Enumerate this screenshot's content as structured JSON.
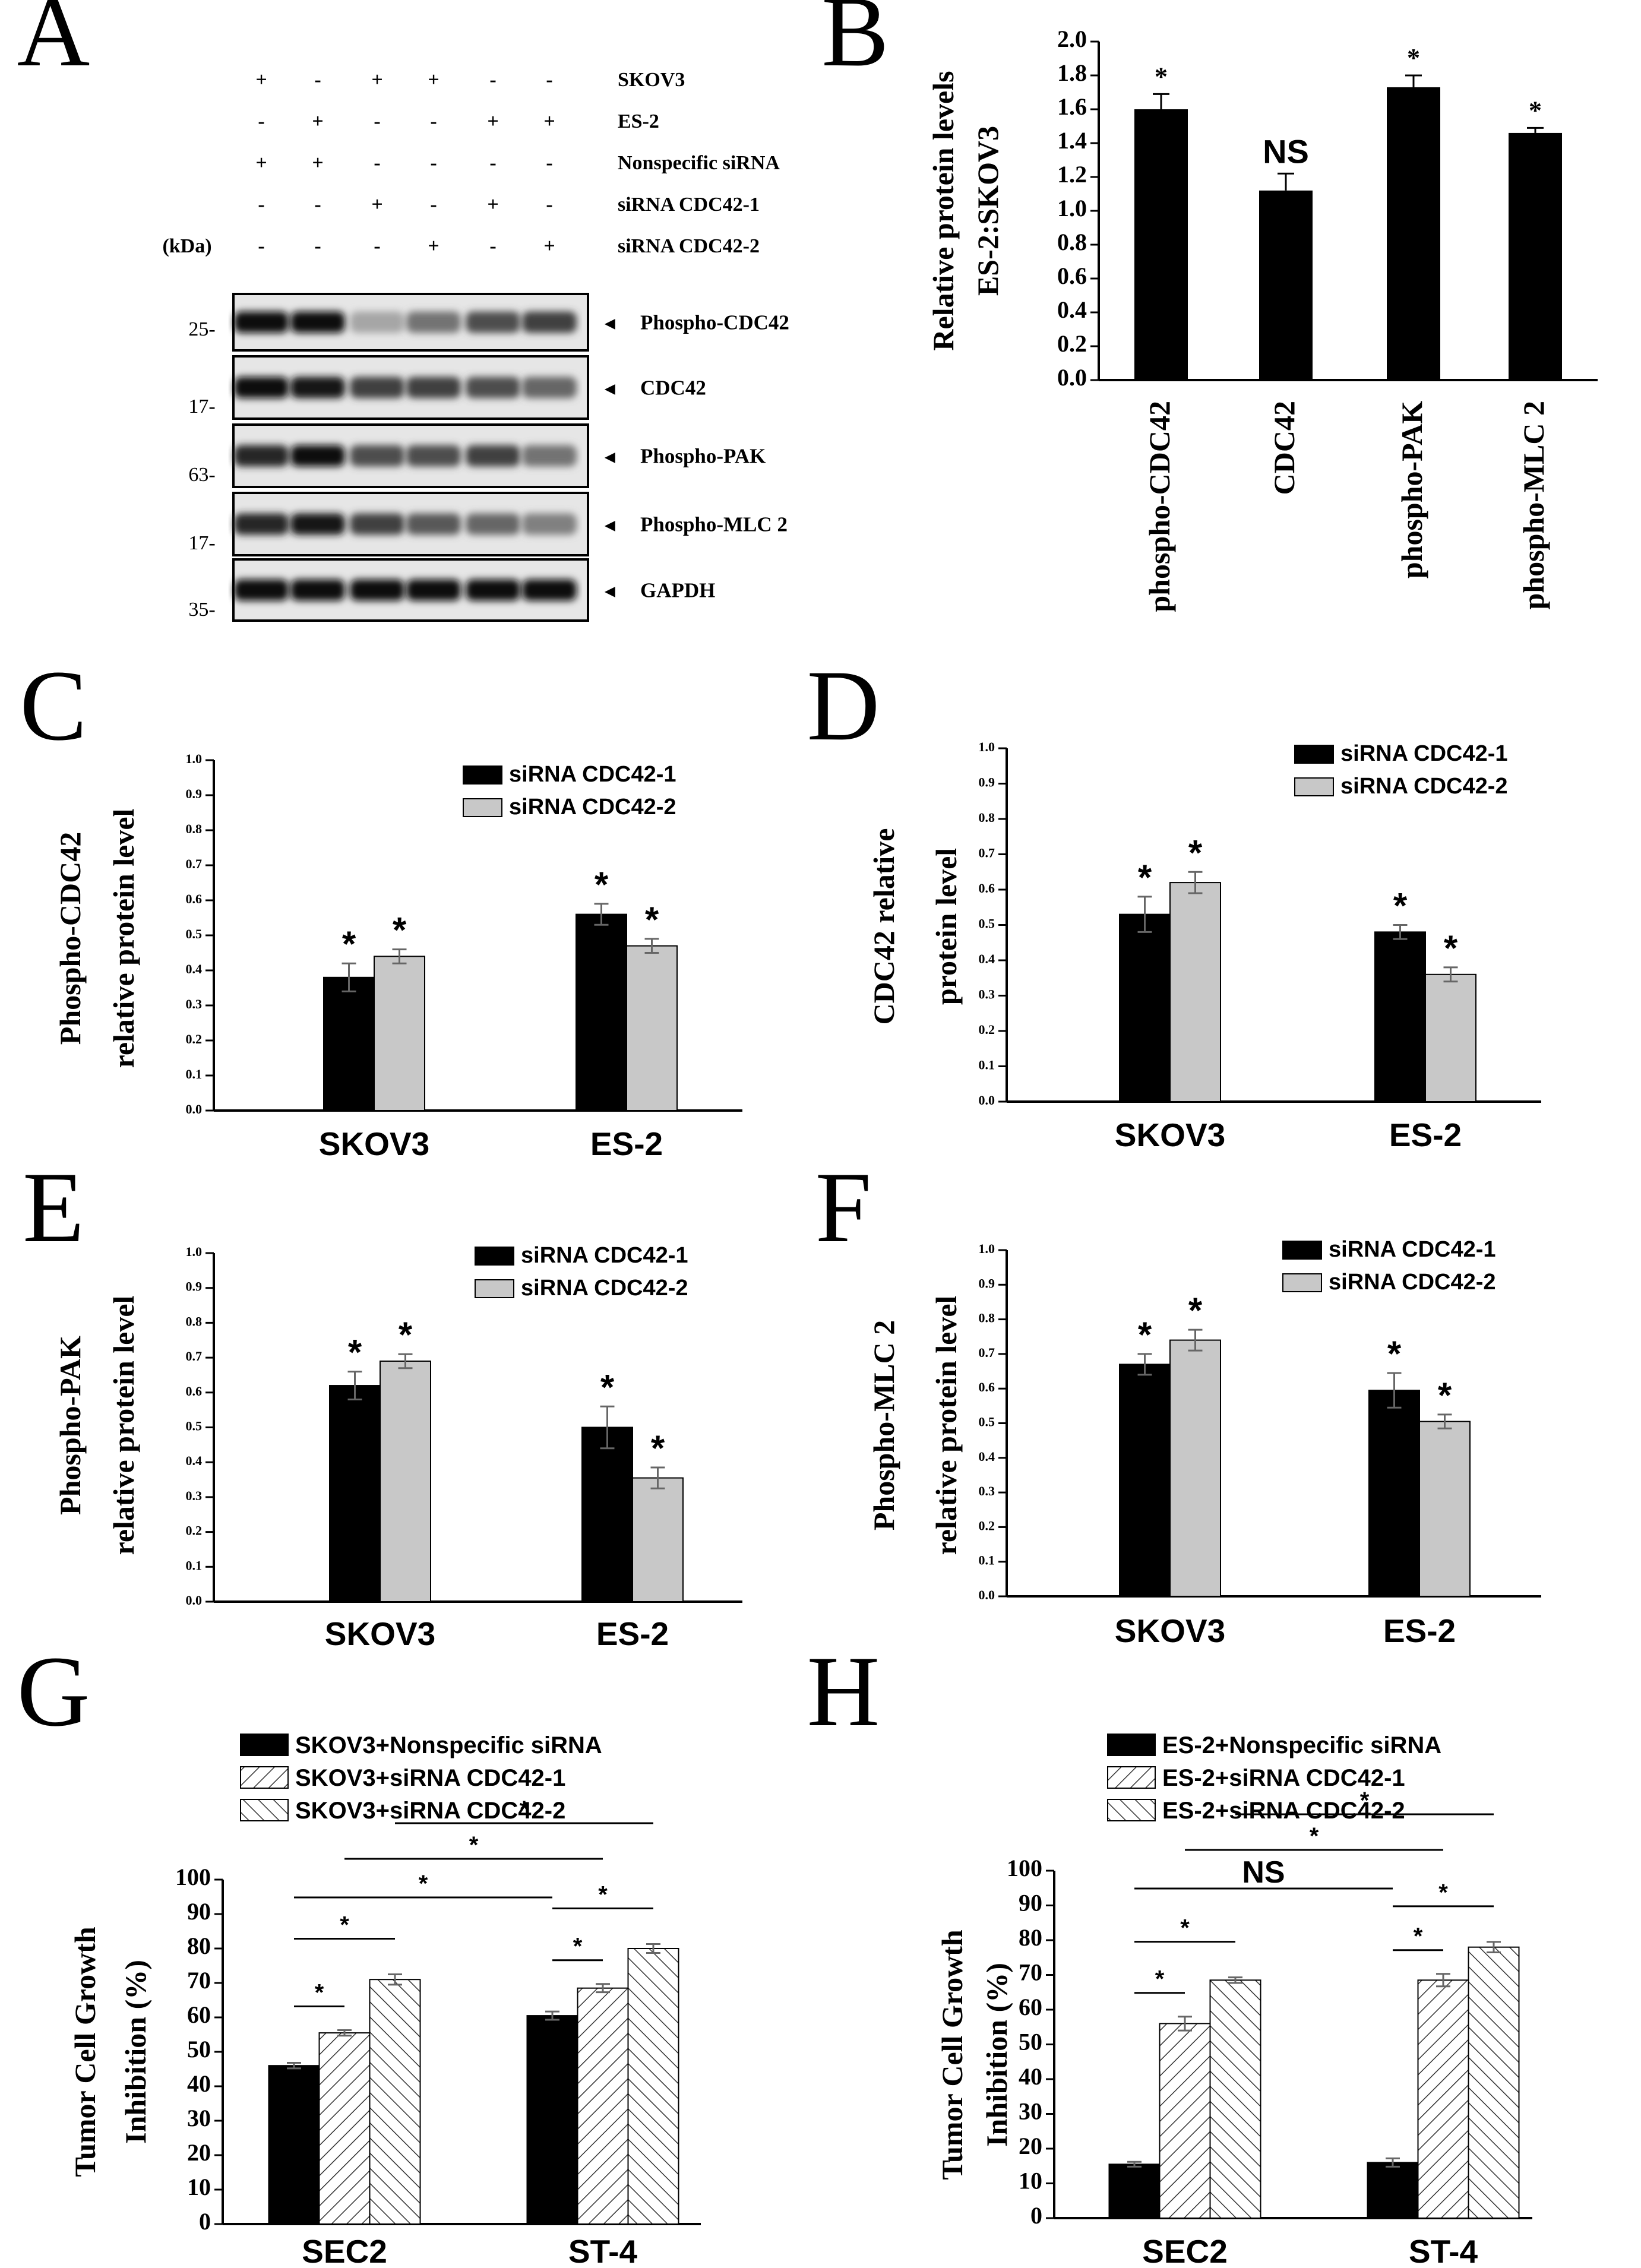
{
  "panel_letters": [
    "A",
    "B",
    "C",
    "D",
    "E",
    "F",
    "G",
    "H"
  ],
  "western_blot": {
    "kda_label": "(kDa)",
    "treatment_rows": [
      {
        "label": "SKOV3",
        "signs": [
          "+",
          "-",
          "+",
          "+",
          "-",
          "-"
        ]
      },
      {
        "label": "ES-2",
        "signs": [
          "-",
          "+",
          "-",
          "-",
          "+",
          "+"
        ]
      },
      {
        "label": "Nonspecific  siRNA",
        "signs": [
          "+",
          "+",
          "-",
          "-",
          "-",
          "-"
        ]
      },
      {
        "label": "siRNA  CDC42-1",
        "signs": [
          "-",
          "-",
          "+",
          "-",
          "+",
          "-"
        ]
      },
      {
        "label": "siRNA  CDC42-2",
        "signs": [
          "-",
          "-",
          "-",
          "+",
          "-",
          "+"
        ]
      }
    ],
    "blots": [
      {
        "label": "Phospho-CDC42",
        "kda": "25-",
        "intensity": [
          0.95,
          0.95,
          0.35,
          0.55,
          0.7,
          0.75
        ]
      },
      {
        "label": "CDC42",
        "kda": "17-",
        "intensity": [
          0.95,
          0.9,
          0.75,
          0.75,
          0.7,
          0.6
        ]
      },
      {
        "label": "Phospho-PAK",
        "kda": "63-",
        "intensity": [
          0.85,
          0.95,
          0.7,
          0.7,
          0.75,
          0.55
        ]
      },
      {
        "label": "Phospho-MLC 2",
        "kda": "17-",
        "intensity": [
          0.85,
          0.9,
          0.75,
          0.65,
          0.6,
          0.5
        ]
      },
      {
        "label": "GAPDH",
        "kda": "35-",
        "intensity": [
          0.95,
          0.95,
          0.95,
          0.95,
          0.95,
          0.95
        ]
      }
    ]
  },
  "chart_data": [
    {
      "panel": "B",
      "type": "bar",
      "ylabel_lines": [
        "Relative protein levels",
        "ES-2:SKOV3"
      ],
      "xlabel": "",
      "ylim": [
        0,
        2.0
      ],
      "yticks": [
        "0.0",
        "0.2",
        "0.4",
        "0.6",
        "0.8",
        "1.0",
        "1.2",
        "1.4",
        "1.6",
        "1.8",
        "2.0"
      ],
      "categories": [
        "phospho-CDC42",
        "CDC42",
        "phospho-PAK",
        "phospho-MLC 2"
      ],
      "series": [
        {
          "values": [
            1.6,
            1.12,
            1.73,
            1.46
          ],
          "errors": [
            0.09,
            0.1,
            0.07,
            0.03
          ]
        }
      ],
      "annotations": [
        "*",
        "NS",
        "*",
        "*"
      ],
      "colors": [
        "#000000"
      ]
    },
    {
      "panel": "C",
      "type": "bar",
      "ylabel_lines": [
        "Phospho-CDC42",
        "relative protein level"
      ],
      "ylim": [
        0,
        1.0
      ],
      "yticks": [
        "0.0",
        "0.1",
        "0.2",
        "0.3",
        "0.4",
        "0.5",
        "0.6",
        "0.7",
        "0.8",
        "0.9",
        "1.0"
      ],
      "categories": [
        "SKOV3",
        "ES-2"
      ],
      "series": [
        {
          "name": "siRNA CDC42-1",
          "values": [
            0.38,
            0.56
          ],
          "errors": [
            0.04,
            0.03
          ],
          "stars": [
            "*",
            "*"
          ]
        },
        {
          "name": "siRNA CDC42-2",
          "values": [
            0.44,
            0.47
          ],
          "errors": [
            0.02,
            0.02
          ],
          "stars": [
            "*",
            "*"
          ]
        }
      ],
      "colors": [
        "#000000",
        "#c8c8c8"
      ]
    },
    {
      "panel": "D",
      "type": "bar",
      "ylabel_lines": [
        "CDC42 relative",
        "protein level"
      ],
      "ylim": [
        0,
        1.0
      ],
      "yticks": [
        "0.0",
        "0.1",
        "0.2",
        "0.3",
        "0.4",
        "0.5",
        "0.6",
        "0.7",
        "0.8",
        "0.9",
        "1.0"
      ],
      "categories": [
        "SKOV3",
        "ES-2"
      ],
      "series": [
        {
          "name": "siRNA CDC42-1",
          "values": [
            0.53,
            0.48
          ],
          "errors": [
            0.05,
            0.02
          ],
          "stars": [
            "*",
            "*"
          ]
        },
        {
          "name": "siRNA CDC42-2",
          "values": [
            0.62,
            0.36
          ],
          "errors": [
            0.03,
            0.02
          ],
          "stars": [
            "*",
            "*"
          ]
        }
      ],
      "colors": [
        "#000000",
        "#c8c8c8"
      ]
    },
    {
      "panel": "E",
      "type": "bar",
      "ylabel_lines": [
        "Phospho-PAK",
        "relative protein level"
      ],
      "ylim": [
        0,
        1.0
      ],
      "yticks": [
        "0.0",
        "0.1",
        "0.2",
        "0.3",
        "0.4",
        "0.5",
        "0.6",
        "0.7",
        "0.8",
        "0.9",
        "1.0"
      ],
      "categories": [
        "SKOV3",
        "ES-2"
      ],
      "series": [
        {
          "name": "siRNA CDC42-1",
          "values": [
            0.62,
            0.5
          ],
          "errors": [
            0.04,
            0.06
          ],
          "stars": [
            "*",
            "*"
          ]
        },
        {
          "name": "siRNA CDC42-2",
          "values": [
            0.69,
            0.355
          ],
          "errors": [
            0.02,
            0.03
          ],
          "stars": [
            "*",
            "*"
          ]
        }
      ],
      "colors": [
        "#000000",
        "#c8c8c8"
      ]
    },
    {
      "panel": "F",
      "type": "bar",
      "ylabel_lines": [
        "Phospho-MLC 2",
        "relative protein level"
      ],
      "ylim": [
        0,
        1.0
      ],
      "yticks": [
        "0.0",
        "0.1",
        "0.2",
        "0.3",
        "0.4",
        "0.5",
        "0.6",
        "0.7",
        "0.8",
        "0.9",
        "1.0"
      ],
      "categories": [
        "SKOV3",
        "ES-2"
      ],
      "series": [
        {
          "name": "siRNA CDC42-1",
          "values": [
            0.67,
            0.595
          ],
          "errors": [
            0.03,
            0.05
          ],
          "stars": [
            "*",
            "*"
          ]
        },
        {
          "name": "siRNA CDC42-2",
          "values": [
            0.74,
            0.505
          ],
          "errors": [
            0.03,
            0.02
          ],
          "stars": [
            "*",
            "*"
          ]
        }
      ],
      "colors": [
        "#000000",
        "#c8c8c8"
      ]
    },
    {
      "panel": "G",
      "type": "bar",
      "ylabel_lines": [
        "Tumor Cell Growth",
        "Inhibition  (%)"
      ],
      "ylim": [
        0,
        100
      ],
      "yticks": [
        "0",
        "10",
        "20",
        "30",
        "40",
        "50",
        "60",
        "70",
        "80",
        "90",
        "100"
      ],
      "categories": [
        "SEC2",
        "ST-4"
      ],
      "series": [
        {
          "name": "SKOV3+Nonspecific siRNA",
          "values": [
            46,
            60.5
          ],
          "errors": [
            0.8,
            1.2
          ],
          "pattern": "solid"
        },
        {
          "name": "SKOV3+siRNA CDC42-1",
          "values": [
            55.5,
            68.5
          ],
          "errors": [
            0.8,
            1.2
          ],
          "pattern": "slash"
        },
        {
          "name": "SKOV3+siRNA CDC42-2",
          "values": [
            71,
            80
          ],
          "errors": [
            1.5,
            1.3
          ],
          "pattern": "backslash"
        }
      ],
      "comparisons": [
        {
          "from": [
            0,
            0
          ],
          "to": [
            0,
            1
          ],
          "label": "*"
        },
        {
          "from": [
            0,
            0
          ],
          "to": [
            0,
            2
          ],
          "label": "*"
        },
        {
          "from": [
            0,
            0
          ],
          "to": [
            1,
            0
          ],
          "label": "*"
        },
        {
          "from": [
            0,
            1
          ],
          "to": [
            1,
            1
          ],
          "label": "*"
        },
        {
          "from": [
            0,
            2
          ],
          "to": [
            1,
            2
          ],
          "label": "*"
        },
        {
          "from": [
            1,
            0
          ],
          "to": [
            1,
            1
          ],
          "label": "*"
        },
        {
          "from": [
            1,
            0
          ],
          "to": [
            1,
            2
          ],
          "label": "*"
        }
      ]
    },
    {
      "panel": "H",
      "type": "bar",
      "ylabel_lines": [
        "Tumor Cell Growth",
        "Inhibition  (%)"
      ],
      "ylim": [
        0,
        100
      ],
      "yticks": [
        "0",
        "10",
        "20",
        "30",
        "40",
        "50",
        "60",
        "70",
        "80",
        "90",
        "100"
      ],
      "categories": [
        "SEC2",
        "ST-4"
      ],
      "series": [
        {
          "name": "ES-2+Nonspecific siRNA",
          "values": [
            15.5,
            16
          ],
          "errors": [
            0.7,
            1.2
          ],
          "pattern": "solid"
        },
        {
          "name": "ES-2+siRNA CDC42-1",
          "values": [
            56,
            68.5
          ],
          "errors": [
            2,
            1.8
          ],
          "pattern": "slash"
        },
        {
          "name": "ES-2+siRNA CDC42-2",
          "values": [
            68.5,
            78
          ],
          "errors": [
            0.8,
            1.5
          ],
          "pattern": "backslash"
        }
      ],
      "comparisons": [
        {
          "from": [
            0,
            0
          ],
          "to": [
            0,
            1
          ],
          "label": "*"
        },
        {
          "from": [
            0,
            0
          ],
          "to": [
            0,
            2
          ],
          "label": "*"
        },
        {
          "from": [
            0,
            0
          ],
          "to": [
            1,
            0
          ],
          "label": "NS"
        },
        {
          "from": [
            0,
            1
          ],
          "to": [
            1,
            1
          ],
          "label": "*"
        },
        {
          "from": [
            0,
            2
          ],
          "to": [
            1,
            2
          ],
          "label": "*"
        },
        {
          "from": [
            1,
            0
          ],
          "to": [
            1,
            1
          ],
          "label": "*"
        },
        {
          "from": [
            1,
            0
          ],
          "to": [
            1,
            2
          ],
          "label": "*"
        }
      ]
    }
  ]
}
